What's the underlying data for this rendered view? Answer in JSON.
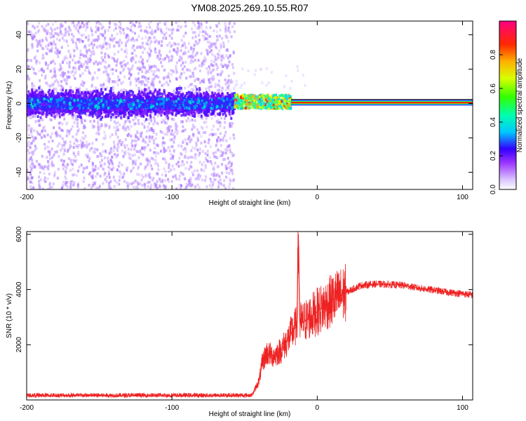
{
  "title": "YM08.2025.269.10.55.R07",
  "charts": [
    {
      "type": "heatmap",
      "xlabel": "Height of straight line (km)",
      "ylabel": "Frequency (Hz)",
      "xlim": [
        -200,
        107
      ],
      "ylim": [
        -50,
        48
      ],
      "x_ticks": [
        -200,
        -100,
        0,
        100
      ],
      "x_tick_labels": [
        "-200",
        "-100",
        "0",
        "100"
      ],
      "y_ticks": [
        -40,
        -20,
        0,
        20,
        40
      ],
      "y_tick_labels": [
        "-40",
        "-20",
        "0",
        "20",
        "40"
      ],
      "grid": false,
      "description_series": [
        {
          "name": "noise-region",
          "x_range": [
            -200,
            -57
          ],
          "band_hz": [
            -10,
            10
          ],
          "core_hz": [
            -3,
            3
          ],
          "spread_hz": [
            -50,
            48
          ]
        },
        {
          "name": "transition",
          "x_range": [
            -57,
            -18
          ],
          "band_hz": [
            -3,
            5
          ]
        },
        {
          "name": "signal-line",
          "x_range": [
            -18,
            107
          ],
          "freq_hz": 0.5,
          "halfwidth_hz": 1.5
        }
      ],
      "colorbar": {
        "label": "Normalized spectral amplitude",
        "range": [
          0,
          1
        ],
        "ticks": [
          0.0,
          0.2,
          0.4,
          0.6,
          0.8
        ],
        "tick_labels": [
          "0.0",
          "0.2",
          "0.4",
          "0.6",
          "0.8"
        ]
      }
    },
    {
      "type": "line",
      "xlabel": "Height of straight line (km)",
      "ylabel": "SNR (10 * v/v)",
      "xlim": [
        -200,
        107
      ],
      "ylim": [
        0,
        6100
      ],
      "x_ticks": [
        -200,
        -100,
        0,
        100
      ],
      "x_tick_labels": [
        "-200",
        "-100",
        "0",
        "100"
      ],
      "y_ticks": [
        2000,
        4000,
        6000
      ],
      "y_tick_labels": [
        "2000",
        "4000",
        "6000"
      ],
      "grid": false,
      "series": [
        {
          "name": "SNR",
          "color": "#ee2222",
          "x": [
            -200,
            -150,
            -100,
            -60,
            -45,
            -40,
            -38,
            -35,
            -30,
            -25,
            -20,
            -17,
            -14,
            -13,
            -12,
            -10,
            -5,
            0,
            10,
            20,
            30,
            40,
            50,
            60,
            70,
            80,
            90,
            100,
            107
          ],
          "y": [
            150,
            150,
            150,
            150,
            160,
            700,
            1300,
            1700,
            1600,
            1800,
            2200,
            2500,
            2700,
            6000,
            2800,
            2800,
            3000,
            3200,
            3600,
            3900,
            4150,
            4200,
            4180,
            4150,
            4050,
            3980,
            3900,
            3850,
            3800
          ]
        }
      ]
    }
  ]
}
